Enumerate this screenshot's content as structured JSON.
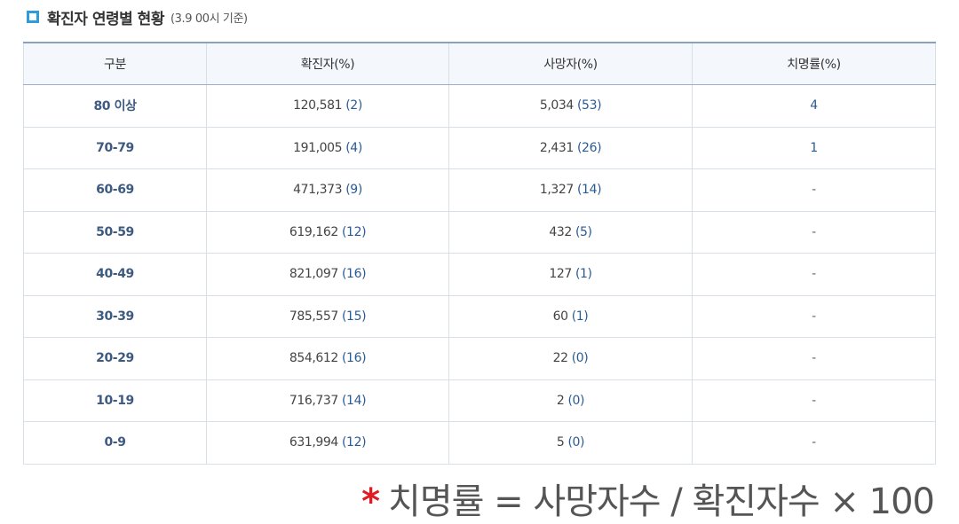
{
  "heading": {
    "title": "확진자 연령별 현황",
    "note": "(3.9 00시 기준)"
  },
  "table": {
    "headers": [
      "구분",
      "확진자(%)",
      "사망자(%)",
      "치명률(%)"
    ],
    "rows": [
      {
        "age": "80 이상",
        "cases": "120,581",
        "cases_pct": "(2)",
        "deaths": "5,034",
        "deaths_pct": "(53)",
        "fatality": "4"
      },
      {
        "age": "70-79",
        "cases": "191,005",
        "cases_pct": "(4)",
        "deaths": "2,431",
        "deaths_pct": "(26)",
        "fatality": "1"
      },
      {
        "age": "60-69",
        "cases": "471,373",
        "cases_pct": "(9)",
        "deaths": "1,327",
        "deaths_pct": "(14)",
        "fatality": "-"
      },
      {
        "age": "50-59",
        "cases": "619,162",
        "cases_pct": "(12)",
        "deaths": "432",
        "deaths_pct": "(5)",
        "fatality": "-"
      },
      {
        "age": "40-49",
        "cases": "821,097",
        "cases_pct": "(16)",
        "deaths": "127",
        "deaths_pct": "(1)",
        "fatality": "-"
      },
      {
        "age": "30-39",
        "cases": "785,557",
        "cases_pct": "(15)",
        "deaths": "60",
        "deaths_pct": "(1)",
        "fatality": "-"
      },
      {
        "age": "20-29",
        "cases": "854,612",
        "cases_pct": "(16)",
        "deaths": "22",
        "deaths_pct": "(0)",
        "fatality": "-"
      },
      {
        "age": "10-19",
        "cases": "716,737",
        "cases_pct": "(14)",
        "deaths": "2",
        "deaths_pct": "(0)",
        "fatality": "-"
      },
      {
        "age": "0-9",
        "cases": "631,994",
        "cases_pct": "(12)",
        "deaths": "5",
        "deaths_pct": "(0)",
        "fatality": "-"
      }
    ]
  },
  "footnote": {
    "marker": "*",
    "text": "치명률 = 사망자수 / 확진자수 × 100"
  }
}
